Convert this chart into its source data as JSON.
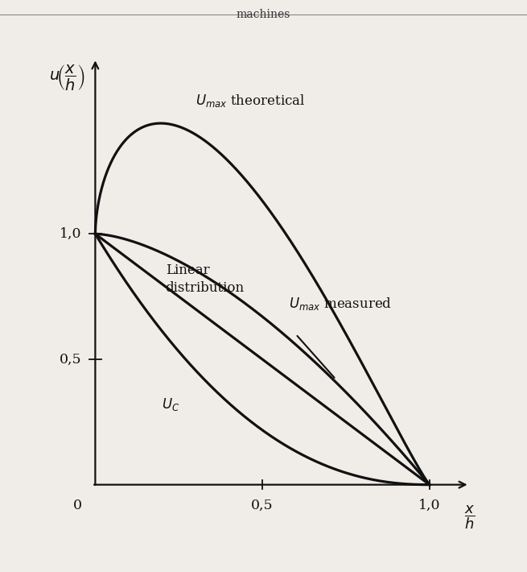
{
  "title": "machines",
  "bg_color": "#f0ede8",
  "line_color": "#111111",
  "xlim": [
    -0.08,
    1.15
  ],
  "ylim": [
    -0.12,
    1.75
  ],
  "yticks": [
    0.5,
    1.0
  ],
  "ytick_labels": [
    "0,5",
    "1,0"
  ],
  "xticks": [
    0.5,
    1.0
  ],
  "xtick_labels": [
    "0,5",
    "1,0"
  ]
}
